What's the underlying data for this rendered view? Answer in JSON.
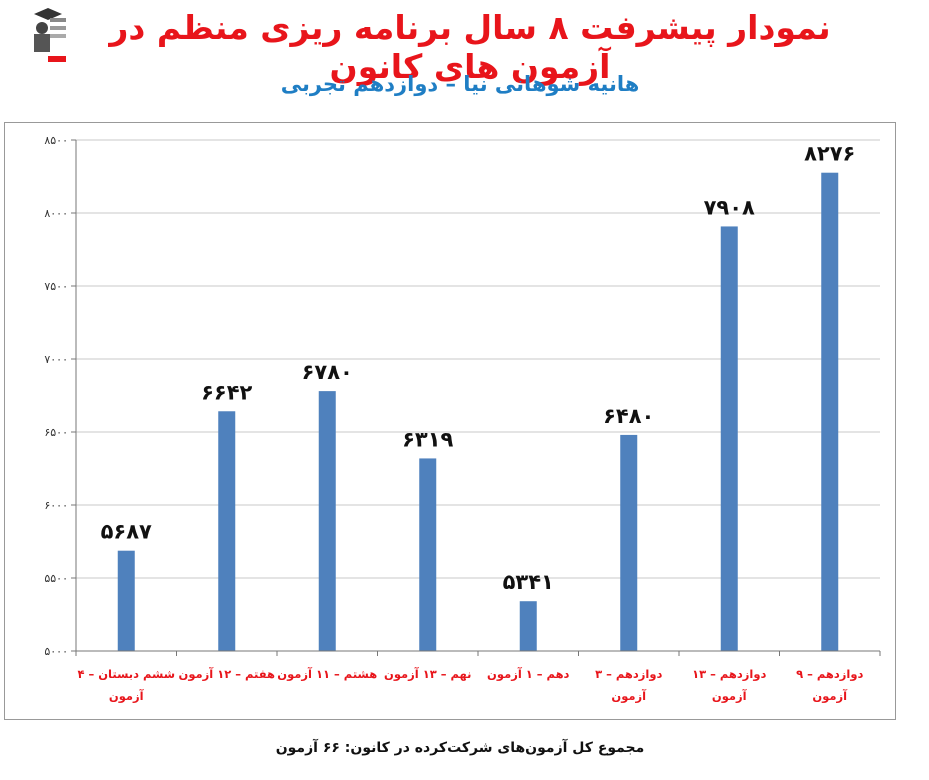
{
  "title": "نمودار پیشرفت ۸ سال برنامه ریزی منظم در آزمون های کانون",
  "subtitle": "هانیه شوهانی نیا – دوازدهم تجربی",
  "footer": "مجموع کل آزمون‌های شرکت‌کرده در کانون: ۶۶ آزمون",
  "colors": {
    "title": "#e8151b",
    "subtitle": "#1f7ec4",
    "bar": "#4f81bd",
    "category": "#e8151b"
  },
  "chart_data": {
    "type": "bar",
    "categories": [
      [
        "ششم دبستان – ۴",
        "آزمون"
      ],
      [
        "هفتم – ۱۲ آزمون"
      ],
      [
        "هشتم – ۱۱ آزمون"
      ],
      [
        "نهم – ۱۳ آزمون"
      ],
      [
        "دهم – ۱ آزمون"
      ],
      [
        "دوازدهم – ۳",
        "آزمون"
      ],
      [
        "دوازدهم – ۱۳",
        "آزمون"
      ],
      [
        "دوازدهم – ۹",
        "آزمون"
      ]
    ],
    "values": [
      5687,
      6642,
      6780,
      6319,
      5341,
      6480,
      7908,
      8276
    ],
    "data_labels": [
      "۵۶۸۷",
      "۶۶۴۲",
      "۶۷۸۰",
      "۶۳۱۹",
      "۵۳۴۱",
      "۶۴۸۰",
      "۷۹۰۸",
      "۸۲۷۶"
    ],
    "ylim": [
      5000,
      8500
    ],
    "yticks": [
      5000,
      5500,
      6000,
      6500,
      7000,
      7500,
      8000,
      8500
    ],
    "ytick_labels": [
      "۵۰۰۰",
      "۵۵۰۰",
      "۶۰۰۰",
      "۶۵۰۰",
      "۷۰۰۰",
      "۷۵۰۰",
      "۸۰۰۰",
      "۸۵۰۰"
    ],
    "grid": true,
    "legend": "none"
  }
}
